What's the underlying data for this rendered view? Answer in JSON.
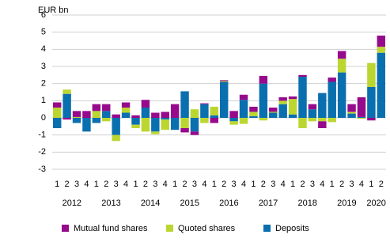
{
  "chart_data": {
    "type": "bar",
    "stacked": true,
    "y_label": "EUR bn",
    "categories": [
      "1",
      "2",
      "3",
      "4",
      "1",
      "2",
      "3",
      "4",
      "1",
      "2",
      "3",
      "4",
      "1",
      "2",
      "3",
      "4",
      "1",
      "2",
      "3",
      "4",
      "1",
      "2",
      "3",
      "4",
      "1",
      "2",
      "3",
      "4",
      "1",
      "2",
      "3",
      "4",
      "1",
      "2"
    ],
    "years": [
      "2012",
      "2013",
      "2014",
      "2015",
      "2016",
      "2017",
      "2018",
      "2019",
      "2020"
    ],
    "series": [
      {
        "name": "Mutual fund shares",
        "color": "#960a8c",
        "values": [
          0.3,
          -0.1,
          0.35,
          0.4,
          0.4,
          0.4,
          0.2,
          0.3,
          0.15,
          0.45,
          0.3,
          0.35,
          0.8,
          -0.25,
          -0.2,
          0.05,
          -0.3,
          0.05,
          0.4,
          0.3,
          0.3,
          0.45,
          0.25,
          0.2,
          0.15,
          0.1,
          0.3,
          -0.4,
          0.25,
          0.45,
          0.45,
          1.15,
          -0.15,
          0.65
        ]
      },
      {
        "name": "Quoted shares",
        "color": "#bcd631",
        "values": [
          0.6,
          0.25,
          0.05,
          0,
          0.4,
          -0.2,
          -0.35,
          0.3,
          -0.2,
          -0.8,
          -0.15,
          -0.6,
          0,
          -0.6,
          0.5,
          -0.3,
          0.5,
          0.05,
          -0.2,
          -0.35,
          0.25,
          -0.15,
          0.05,
          0.2,
          0.9,
          -0.6,
          -0.2,
          -0.2,
          -0.25,
          0.8,
          0.1,
          -0.05,
          1.4,
          0.35
        ]
      },
      {
        "name": "Deposits",
        "color": "#0a6fae",
        "values": [
          -0.6,
          1.4,
          -0.3,
          -0.8,
          -0.3,
          0.4,
          -1.0,
          0.3,
          -0.4,
          0.6,
          -0.8,
          -0.1,
          -0.7,
          1.55,
          -0.8,
          0.8,
          0.15,
          2.1,
          -0.2,
          1.05,
          0.1,
          2.0,
          0.3,
          0.8,
          0.2,
          2.4,
          0.5,
          1.45,
          2.1,
          2.65,
          0.25,
          0.05,
          1.8,
          3.8
        ]
      }
    ],
    "ylim": [
      -3,
      6
    ],
    "yticks": [
      -3,
      -2,
      -1,
      0,
      1,
      2,
      3,
      4,
      5,
      6
    ],
    "grid": true
  }
}
